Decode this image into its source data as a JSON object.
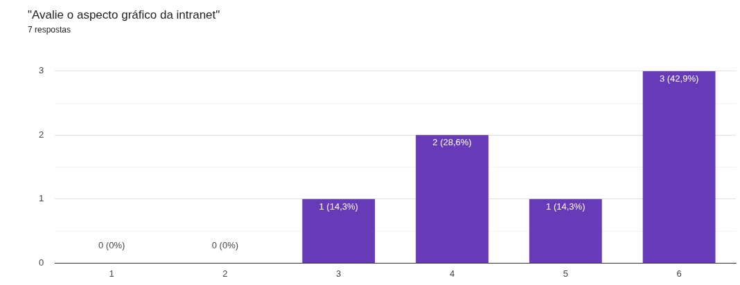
{
  "chart_data": {
    "type": "bar",
    "title": "\"Avalie o aspecto gráfico da intranet\"",
    "subtitle": "7 respostas",
    "categories": [
      "1",
      "2",
      "3",
      "4",
      "5",
      "6"
    ],
    "values": [
      0,
      0,
      1,
      2,
      1,
      3
    ],
    "value_labels": [
      "0 (0%)",
      "0 (0%)",
      "1 (14,3%)",
      "2 (28,6%)",
      "1 (14,3%)",
      "3 (42,9%)"
    ],
    "color": "#673ab7",
    "ylim": [
      0,
      3
    ],
    "yticks": [
      0,
      {
        "value": 0.5,
        "label": null
      },
      1,
      {
        "value": 1.5,
        "label": null
      },
      2,
      {
        "value": 2.5,
        "label": null
      },
      3
    ],
    "grid": "y",
    "legend": false
  }
}
